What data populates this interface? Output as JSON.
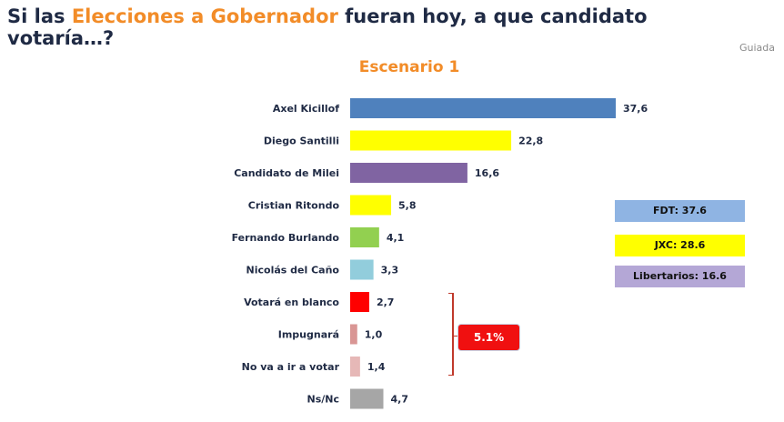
{
  "title": {
    "part1": "Si las ",
    "accent": "Elecciones a Gobernador",
    "part2": " fueran hoy, a que candidato votaría…?"
  },
  "source": "Guiada",
  "subtitle": "Escenario 1",
  "legend": [
    {
      "label": "FDT: 37.6",
      "color": "#8fb4e3"
    },
    {
      "label": "JXC: 28.6",
      "color": "#ffff00"
    },
    {
      "label": "Libertarios: 16.6",
      "color": "#b4a7d6"
    }
  ],
  "callout": "5.1%",
  "chart_data": {
    "type": "bar",
    "orientation": "horizontal",
    "title": "Escenario 1",
    "categories": [
      "Axel Kicillof",
      "Diego Santilli",
      "Candidato de Milei",
      "Cristian Ritondo",
      "Fernando Burlando",
      "Nicolás del Caño",
      "Votará en blanco",
      "Impugnará",
      "No va a ir a votar",
      "Ns/Nc"
    ],
    "values": [
      37.6,
      22.8,
      16.6,
      5.8,
      4.1,
      3.3,
      2.7,
      1.0,
      1.4,
      4.7
    ],
    "value_labels": [
      "37,6",
      "22,8",
      "16,6",
      "5,8",
      "4,1",
      "3,3",
      "2,7",
      "1,0",
      "1,4",
      "4,7"
    ],
    "colors": [
      "#4f81bd",
      "#ffff00",
      "#8064a2",
      "#ffff00",
      "#92d050",
      "#92cddc",
      "#ff0000",
      "#d99694",
      "#e6b8b7",
      "#a6a6a6"
    ],
    "xlim": [
      0,
      37.6
    ],
    "grid": false,
    "legend_placement": "right"
  }
}
